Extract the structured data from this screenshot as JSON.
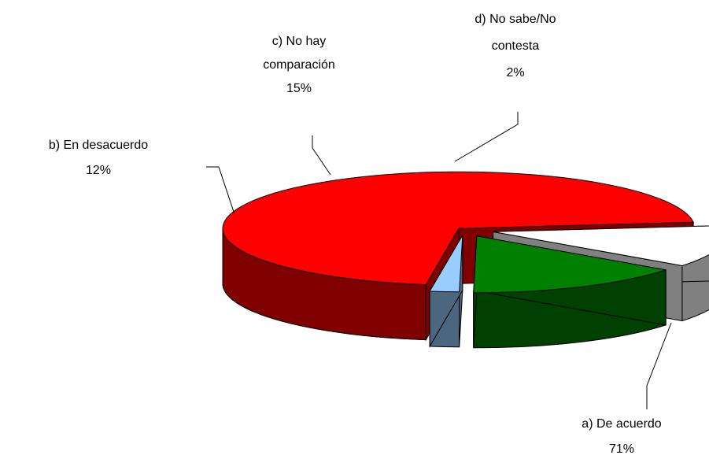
{
  "chart_data": {
    "type": "pie",
    "style": "3d-exploded",
    "title": "",
    "slices": [
      {
        "label_line1": "a) De acuerdo",
        "label_line2": "",
        "value": 71,
        "percent_label": "71%",
        "top_color": "#FF0000",
        "side_color": "#800000"
      },
      {
        "label_line1": "b) En desacuerdo",
        "label_line2": "",
        "value": 12,
        "percent_label": "12%",
        "top_color": "#FFFFFF",
        "side_color": "#808080"
      },
      {
        "label_line1": "c) No hay",
        "label_line2": "comparación",
        "value": 15,
        "percent_label": "15%",
        "top_color": "#008000",
        "side_color": "#004000"
      },
      {
        "label_line1": "d) No sabe/No",
        "label_line2": "contesta",
        "value": 2,
        "percent_label": "2%",
        "top_color": "#99CCFF",
        "side_color": "#4D6680"
      }
    ],
    "legend": "none"
  }
}
